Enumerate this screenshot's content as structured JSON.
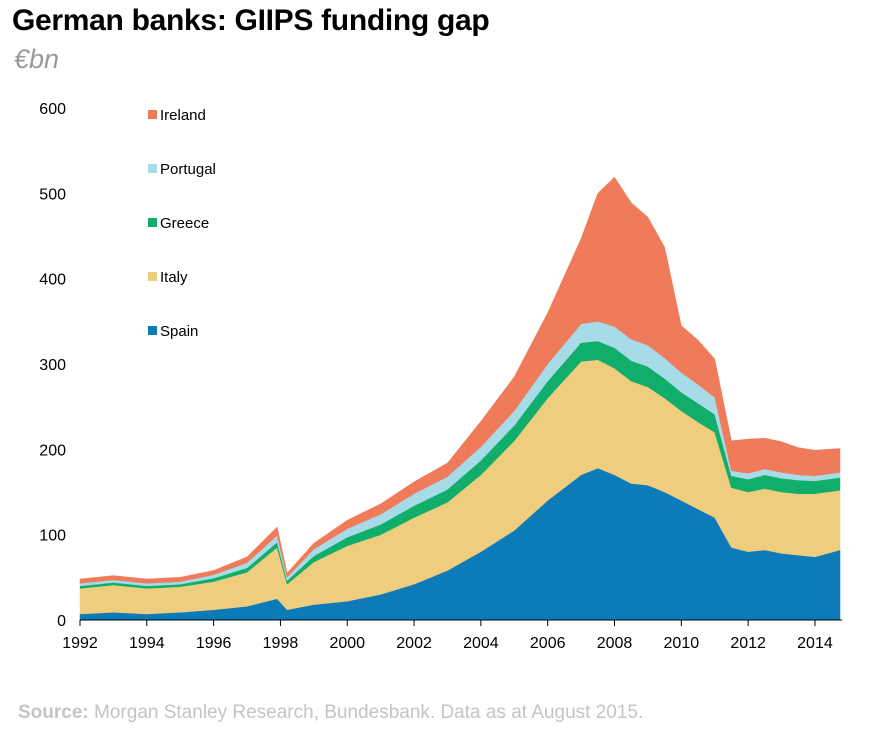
{
  "chart_data": {
    "type": "area",
    "stacked": true,
    "title": "German banks: GIIPS funding gap",
    "subtitle": "€bn",
    "xlabel": "",
    "ylabel": "",
    "xlim": [
      1992,
      2014.75
    ],
    "ylim": [
      0,
      600
    ],
    "yticks": [
      0,
      100,
      200,
      300,
      400,
      500,
      600
    ],
    "xticks": [
      1992,
      1994,
      1996,
      1998,
      2000,
      2002,
      2004,
      2006,
      2008,
      2010,
      2012,
      2014
    ],
    "x": [
      1992,
      1993,
      1994,
      1995,
      1996,
      1997,
      1997.9,
      1998.2,
      1999,
      2000,
      2001,
      2002,
      2003,
      2004,
      2005,
      2006,
      2007,
      2007.5,
      2008,
      2008.5,
      2009,
      2009.5,
      2010,
      2010.5,
      2011,
      2011.5,
      2012,
      2012.5,
      2013,
      2013.5,
      2014,
      2014.75
    ],
    "series": [
      {
        "name": "Spain",
        "color": "#0d7bb8",
        "values": [
          7,
          9,
          7,
          9,
          12,
          16,
          25,
          12,
          18,
          22,
          30,
          42,
          58,
          80,
          105,
          140,
          170,
          178,
          170,
          160,
          158,
          150,
          140,
          130,
          120,
          85,
          80,
          82,
          78,
          76,
          74,
          82
        ]
      },
      {
        "name": "Italy",
        "color": "#eecd7f",
        "values": [
          30,
          32,
          30,
          30,
          33,
          40,
          60,
          30,
          50,
          65,
          70,
          78,
          80,
          90,
          105,
          120,
          133,
          127,
          125,
          120,
          115,
          110,
          105,
          102,
          100,
          70,
          70,
          72,
          72,
          72,
          74,
          70
        ]
      },
      {
        "name": "Greece",
        "color": "#10ae6a",
        "values": [
          3,
          3,
          3,
          3,
          4,
          5,
          6,
          4,
          7,
          10,
          12,
          14,
          15,
          17,
          18,
          20,
          22,
          22,
          24,
          24,
          24,
          23,
          22,
          22,
          21,
          14,
          15,
          16,
          16,
          16,
          15,
          15
        ]
      },
      {
        "name": "Portugal",
        "color": "#a6dbe7",
        "values": [
          3,
          3,
          3,
          3,
          4,
          6,
          8,
          4,
          8,
          10,
          12,
          14,
          15,
          16,
          17,
          20,
          22,
          23,
          25,
          25,
          25,
          24,
          23,
          22,
          20,
          6,
          7,
          7,
          7,
          6,
          6,
          6
        ]
      },
      {
        "name": "Ireland",
        "color": "#f07b5a",
        "values": [
          5,
          5,
          5,
          5,
          5,
          7,
          10,
          5,
          7,
          10,
          12,
          14,
          16,
          30,
          40,
          60,
          100,
          150,
          175,
          160,
          150,
          130,
          55,
          52,
          45,
          35,
          40,
          36,
          36,
          32,
          30,
          28
        ]
      }
    ],
    "legend": [
      "Ireland",
      "Portugal",
      "Greece",
      "Italy",
      "Spain"
    ],
    "legend_position": "top-left",
    "grid": false
  },
  "source": {
    "label": "Source:",
    "text": " Morgan Stanley Research, Bundesbank. Data as at August 2015."
  }
}
